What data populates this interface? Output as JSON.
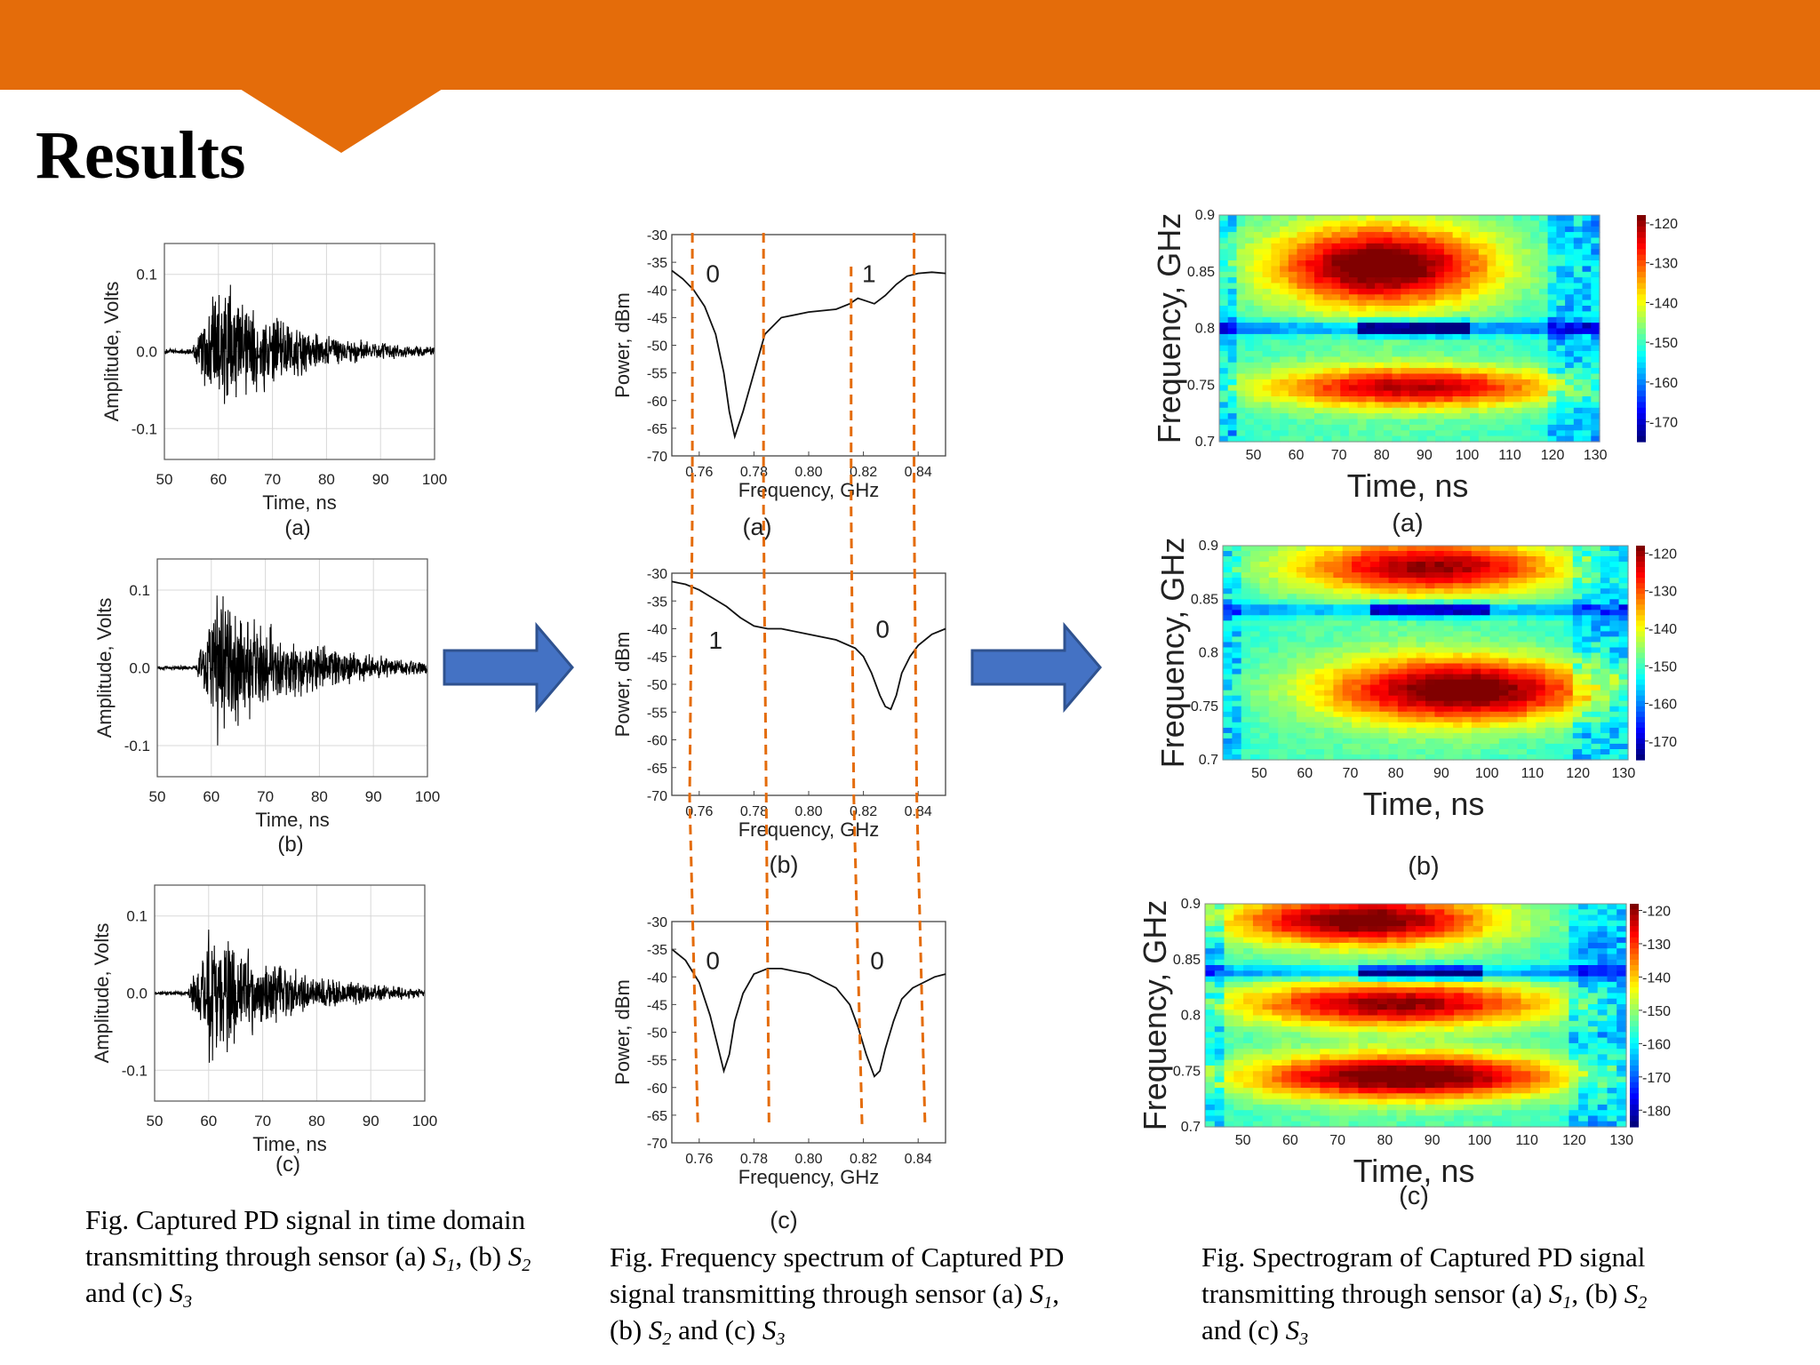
{
  "slide": {
    "title": "Results"
  },
  "colors": {
    "header": "#E46C0A",
    "arrow": "#4472C4",
    "guide": "#E46C0A"
  },
  "captions": {
    "time": {
      "text": "Fig. Captured PD signal in time domain transmitting through sensor",
      "a": "(a)",
      "b": "(b)",
      "and": "and",
      "c": "(c)",
      "s1": "S",
      "s1_sub": "1",
      "s2": "S",
      "s2_sub": "2",
      "s3": "S",
      "s3_sub": "3"
    },
    "freq": {
      "text": "Fig. Frequency spectrum of Captured PD signal transmitting through sensor",
      "a": "(a)",
      "b": "(b)",
      "and": "and",
      "c": "(c)",
      "s1": "S",
      "s1_sub": "1",
      "s2": "S",
      "s2_sub": "2",
      "s3": "S",
      "s3_sub": "3"
    },
    "spec": {
      "text": "Fig. Spectrogram of Captured PD signal transmitting through sensor",
      "a": "(a)",
      "b": "(b)",
      "and": "and",
      "c": "(c)",
      "s1": "S",
      "s1_sub": "1",
      "s2": "S",
      "s2_sub": "2",
      "s3": "S",
      "s3_sub": "3"
    }
  },
  "chart_data": [
    {
      "type": "line",
      "panel": "(a)",
      "xlabel": "Time, ns",
      "ylabel": "Amplitude, Volts",
      "xlim": [
        50,
        100
      ],
      "ylim": [
        -0.14,
        0.14
      ],
      "xticks": [
        50,
        60,
        70,
        80,
        90,
        100
      ],
      "yticks": [
        "0.1",
        "0.0",
        "-0.1"
      ],
      "ytick_values": [
        0.1,
        0.0,
        -0.1
      ],
      "grid": true,
      "signal": {
        "onset_ns": 55,
        "peak_ns": 60,
        "peak_amplitude": 0.11,
        "decay_ns": 14,
        "noise_floor": 0.004
      }
    },
    {
      "type": "line",
      "panel": "(b)",
      "xlabel": "Time, ns",
      "ylabel": "Amplitude, Volts",
      "xlim": [
        50,
        100
      ],
      "ylim": [
        -0.14,
        0.14
      ],
      "xticks": [
        50,
        60,
        70,
        80,
        90,
        100
      ],
      "yticks": [
        "0.1",
        "0.0",
        "-0.1"
      ],
      "ytick_values": [
        0.1,
        0.0,
        -0.1
      ],
      "grid": true,
      "signal": {
        "onset_ns": 57,
        "peak_ns": 61,
        "peak_amplitude": 0.11,
        "decay_ns": 16,
        "noise_floor": 0.003
      }
    },
    {
      "type": "line",
      "panel": "(c)",
      "xlabel": "Time, ns",
      "ylabel": "Amplitude, Volts",
      "xlim": [
        50,
        100
      ],
      "ylim": [
        -0.14,
        0.14
      ],
      "xticks": [
        50,
        60,
        70,
        80,
        90,
        100
      ],
      "yticks": [
        "0.1",
        "0.0",
        "-0.1"
      ],
      "ytick_values": [
        0.1,
        0.0,
        -0.1
      ],
      "grid": true,
      "signal": {
        "onset_ns": 56,
        "peak_ns": 60,
        "peak_amplitude": 0.1,
        "decay_ns": 15,
        "noise_floor": 0.003
      }
    },
    {
      "type": "line",
      "panel": "(a)",
      "xlabel": "Frequency, GHz",
      "ylabel": "Power, dBm",
      "xlim": [
        0.75,
        0.85
      ],
      "ylim": [
        -70,
        -30
      ],
      "xticks": [
        "0.76",
        "0.78",
        "0.80",
        "0.82",
        "0.84"
      ],
      "xtick_values": [
        0.76,
        0.78,
        0.8,
        0.82,
        0.84
      ],
      "yticks": [
        "-30",
        "-35",
        "-40",
        "-45",
        "-50",
        "-55",
        "-60",
        "-65",
        "-70"
      ],
      "bit_labels": [
        "0",
        "1"
      ],
      "bit_label_x": [
        0.765,
        0.822
      ],
      "bit_label_y": [
        -37,
        -37
      ],
      "guides": [
        0.7575,
        0.7835,
        0.8155,
        0.8385
      ],
      "x": [
        0.75,
        0.754,
        0.758,
        0.762,
        0.766,
        0.769,
        0.771,
        0.773,
        0.776,
        0.78,
        0.784,
        0.79,
        0.8,
        0.81,
        0.815,
        0.818,
        0.821,
        0.824,
        0.828,
        0.832,
        0.836,
        0.84,
        0.845,
        0.85
      ],
      "y": [
        -36.5,
        -38,
        -40,
        -43,
        -48,
        -55,
        -62,
        -66.5,
        -62,
        -55,
        -48,
        -45,
        -44,
        -43.5,
        -42.5,
        -41.5,
        -42,
        -42.5,
        -41,
        -39,
        -37.5,
        -37,
        -36.8,
        -37
      ]
    },
    {
      "type": "line",
      "panel": "(b)",
      "xlabel": "Frequency, GHz",
      "ylabel": "Power, dBm",
      "xlim": [
        0.75,
        0.85
      ],
      "ylim": [
        -70,
        -30
      ],
      "xticks": [
        "0.76",
        "0.78",
        "0.80",
        "0.82",
        "0.84"
      ],
      "xtick_values": [
        0.76,
        0.78,
        0.8,
        0.82,
        0.84
      ],
      "yticks": [
        "-30",
        "-35",
        "-40",
        "-45",
        "-50",
        "-55",
        "-60",
        "-65",
        "-70"
      ],
      "bit_labels": [
        "1",
        "0"
      ],
      "bit_label_x": [
        0.766,
        0.827
      ],
      "bit_label_y": [
        -42,
        -40
      ],
      "guides": [
        0.7565,
        0.7845,
        0.8165,
        0.8395
      ],
      "x": [
        0.75,
        0.755,
        0.76,
        0.765,
        0.77,
        0.775,
        0.78,
        0.785,
        0.79,
        0.8,
        0.81,
        0.817,
        0.82,
        0.823,
        0.826,
        0.828,
        0.83,
        0.832,
        0.834,
        0.837,
        0.84,
        0.845,
        0.85
      ],
      "y": [
        -31.5,
        -32,
        -33,
        -34.5,
        -36,
        -38,
        -39.5,
        -40,
        -40,
        -41,
        -42,
        -43.5,
        -45,
        -48,
        -52,
        -54,
        -54.5,
        -52,
        -48,
        -45,
        -43,
        -41,
        -40
      ]
    },
    {
      "type": "line",
      "panel": "(c)",
      "xlabel": "Frequency, GHz",
      "ylabel": "Power, dBm",
      "xlim": [
        0.75,
        0.85
      ],
      "ylim": [
        -70,
        -30
      ],
      "xticks": [
        "0.76",
        "0.78",
        "0.80",
        "0.82",
        "0.84"
      ],
      "xtick_values": [
        0.76,
        0.78,
        0.8,
        0.82,
        0.84
      ],
      "yticks": [
        "-30",
        "-35",
        "-40",
        "-45",
        "-50",
        "-55",
        "-60",
        "-65",
        "-70"
      ],
      "bit_labels": [
        "0",
        "0"
      ],
      "bit_label_x": [
        0.765,
        0.825
      ],
      "bit_label_y": [
        -37,
        -37
      ],
      "guides": [
        0.7595,
        0.7855,
        0.8195,
        0.8425
      ],
      "x": [
        0.75,
        0.755,
        0.76,
        0.764,
        0.767,
        0.769,
        0.771,
        0.773,
        0.776,
        0.78,
        0.785,
        0.79,
        0.8,
        0.81,
        0.815,
        0.818,
        0.821,
        0.824,
        0.826,
        0.828,
        0.831,
        0.834,
        0.838,
        0.842,
        0.846,
        0.85
      ],
      "y": [
        -35,
        -37,
        -41,
        -47,
        -53,
        -57,
        -54,
        -48,
        -43,
        -39.5,
        -38.5,
        -38.5,
        -39.5,
        -42,
        -45,
        -49,
        -54,
        -58,
        -57,
        -53,
        -48,
        -44,
        -42,
        -41,
        -40,
        -39.5
      ]
    },
    {
      "type": "heatmap",
      "panel": "(a)",
      "xlabel": "Time, ns",
      "ylabel": "Frequency, GHz",
      "xlim": [
        42,
        131
      ],
      "ylim": [
        0.7,
        0.9
      ],
      "xticks": [
        50,
        60,
        70,
        80,
        90,
        100,
        110,
        120,
        130
      ],
      "yticks": [
        "0.7",
        "0.75",
        "0.8",
        "0.85",
        "0.9"
      ],
      "ytick_values": [
        0.7,
        0.75,
        0.8,
        0.85,
        0.9
      ],
      "colorbar_ticks": [
        "-120",
        "-130",
        "-140",
        "-150",
        "-160",
        "-170"
      ],
      "colorbar_range": [
        -175,
        -118
      ],
      "bands": [
        {
          "t": 80,
          "f": 0.855,
          "amp": 1.0,
          "st": 26,
          "sf": 0.035
        },
        {
          "t": 88,
          "f": 0.748,
          "amp": 0.8,
          "st": 36,
          "sf": 0.018
        }
      ],
      "notch": 0.8,
      "notch_depth": 0.6
    },
    {
      "type": "heatmap",
      "panel": "(b)",
      "xlabel": "Time, ns",
      "ylabel": "Frequency, GHz",
      "xlim": [
        42,
        131
      ],
      "ylim": [
        0.7,
        0.9
      ],
      "xticks": [
        50,
        60,
        70,
        80,
        90,
        100,
        110,
        120,
        130
      ],
      "yticks": [
        "0.7",
        "0.75",
        "0.8",
        "0.85",
        "0.9"
      ],
      "ytick_values": [
        0.7,
        0.75,
        0.8,
        0.85,
        0.9
      ],
      "colorbar_ticks": [
        "-120",
        "-130",
        "-140",
        "-150",
        "-160",
        "-170"
      ],
      "colorbar_range": [
        -175,
        -118
      ],
      "bands": [
        {
          "t": 88,
          "f": 0.88,
          "amp": 0.85,
          "st": 30,
          "sf": 0.025
        },
        {
          "t": 95,
          "f": 0.765,
          "amp": 1.0,
          "st": 30,
          "sf": 0.03
        }
      ],
      "notch": 0.84,
      "notch_depth": 0.5
    },
    {
      "type": "heatmap",
      "panel": "(c)",
      "xlabel": "Time, ns",
      "ylabel": "Frequency, GHz",
      "xlim": [
        42,
        131
      ],
      "ylim": [
        0.7,
        0.9
      ],
      "xticks": [
        50,
        60,
        70,
        80,
        90,
        100,
        110,
        120,
        130
      ],
      "yticks": [
        "0.7",
        "0.75",
        "0.8",
        "0.85",
        "0.9"
      ],
      "ytick_values": [
        0.7,
        0.75,
        0.8,
        0.85,
        0.9
      ],
      "colorbar_ticks": [
        "-120",
        "-130",
        "-140",
        "-150",
        "-160",
        "-170",
        "-180"
      ],
      "colorbar_range": [
        -185,
        -118
      ],
      "bands": [
        {
          "t": 75,
          "f": 0.885,
          "amp": 0.95,
          "st": 28,
          "sf": 0.022
        },
        {
          "t": 82,
          "f": 0.81,
          "amp": 0.85,
          "st": 34,
          "sf": 0.02
        },
        {
          "t": 85,
          "f": 0.745,
          "amp": 1.0,
          "st": 34,
          "sf": 0.02
        }
      ],
      "notch": 0.838,
      "notch_depth": 0.55
    }
  ]
}
